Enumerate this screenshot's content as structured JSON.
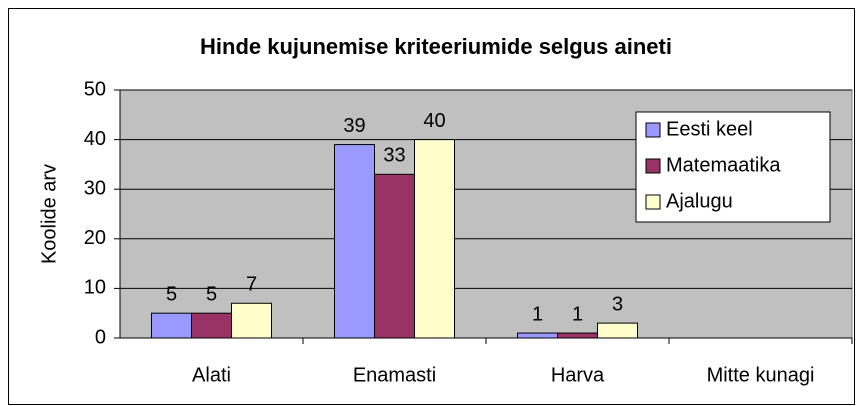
{
  "chart_data": {
    "type": "bar",
    "title": "Hinde kujunemise kriteeriumide selgus aineti",
    "ylabel": "Koolide arv",
    "categories": [
      "Alati",
      "Enamasti",
      "Harva",
      "Mitte kunagi"
    ],
    "series": [
      {
        "name": "Eesti keel",
        "color": "#9999ff",
        "values": [
          5,
          39,
          1,
          null
        ]
      },
      {
        "name": "Matemaatika",
        "color": "#993366",
        "values": [
          5,
          33,
          1,
          null
        ]
      },
      {
        "name": "Ajalugu",
        "color": "#ffffcc",
        "values": [
          7,
          40,
          3,
          null
        ]
      }
    ],
    "ylim": [
      0,
      50
    ],
    "yticks": [
      0,
      10,
      20,
      30,
      40,
      50
    ],
    "grid": true,
    "legend": "upper right"
  }
}
